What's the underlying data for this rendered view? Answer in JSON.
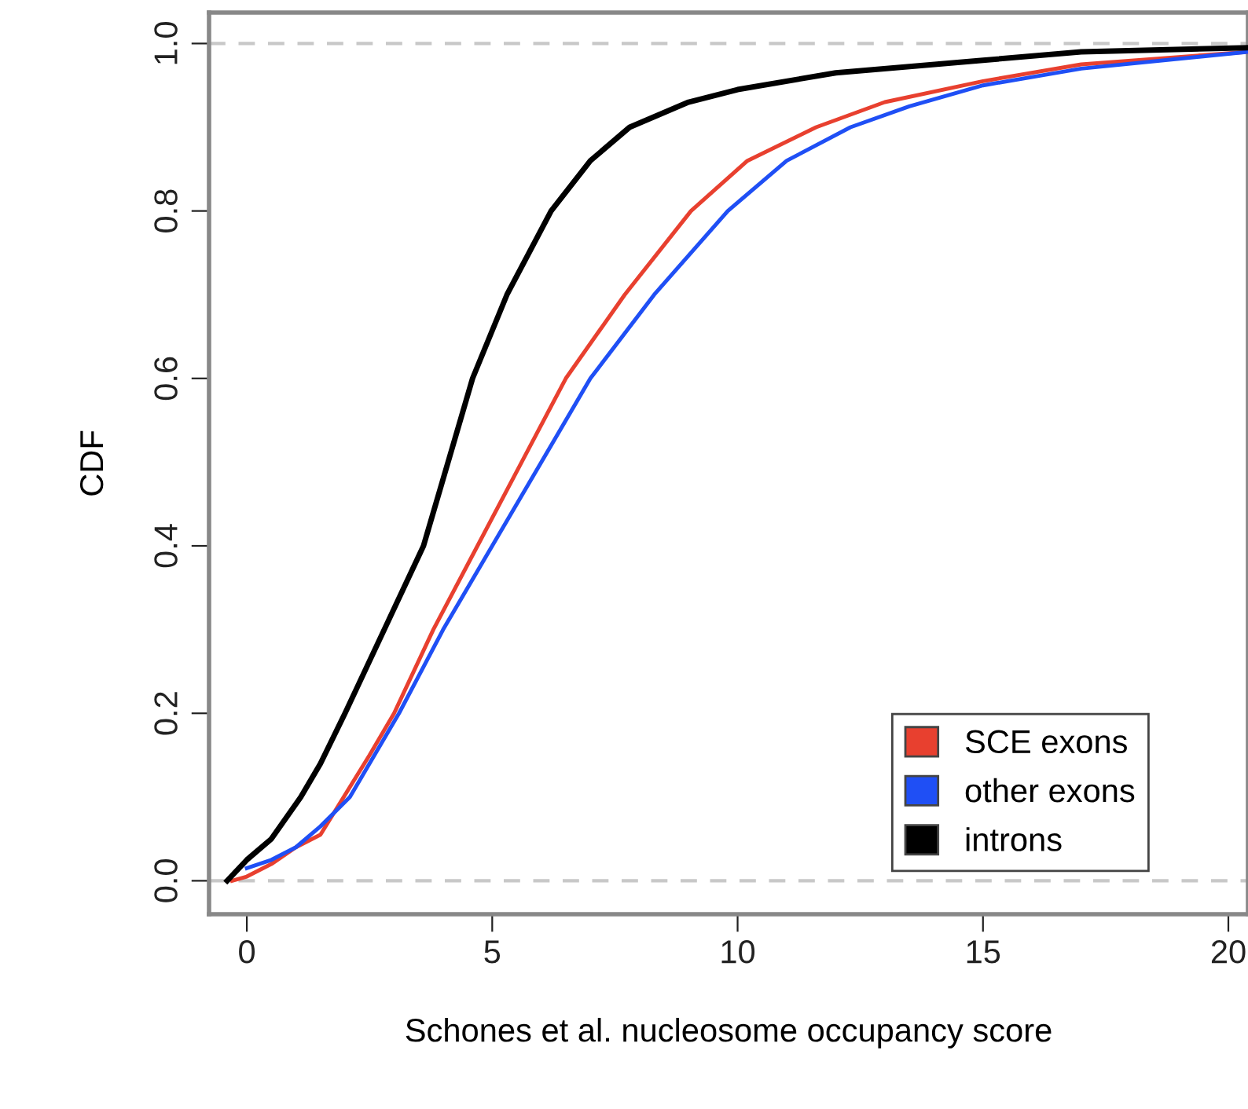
{
  "chart_data": {
    "type": "line",
    "xlabel": "Schones et al. nucleosome occupancy score",
    "ylabel": "CDF",
    "xlim": [
      -0.77,
      20.4
    ],
    "ylim": [
      -0.04,
      1.037
    ],
    "xticks": [
      0,
      5,
      10,
      15,
      20
    ],
    "yticks": [
      {
        "value": 0,
        "label": "0.0"
      },
      {
        "value": 0.2,
        "label": "0.2"
      },
      {
        "value": 0.4,
        "label": "0.4"
      },
      {
        "value": 0.6,
        "label": "0.6"
      },
      {
        "value": 0.8,
        "label": "0.8"
      },
      {
        "value": 1,
        "label": "1.0"
      }
    ],
    "grid": false,
    "legend": "bottom right",
    "line_style": "solid",
    "marker": "none",
    "ref_lines": [
      {
        "axis": "y",
        "value": 0,
        "color": "#c8c8c8",
        "line_style": "dashed"
      },
      {
        "axis": "y",
        "value": 1,
        "color": "#c8c8c8",
        "line_style": "dashed"
      }
    ],
    "series": [
      {
        "name": "SCE exons",
        "color": "#e8402f",
        "x": [
          -0.3,
          0,
          0.5,
          1,
          1.5,
          2.5,
          3.0,
          3.8,
          4.7,
          5.6,
          6.5,
          7.7,
          9.05,
          10.2,
          11.6,
          13,
          15,
          17,
          20.4
        ],
        "values": [
          0,
          0.005,
          0.02,
          0.04,
          0.055,
          0.15,
          0.2,
          0.3,
          0.4,
          0.5,
          0.6,
          0.7,
          0.8,
          0.86,
          0.9,
          0.93,
          0.955,
          0.975,
          0.99
        ]
      },
      {
        "name": "other exons",
        "color": "#1f4ff5",
        "x": [
          0,
          0.5,
          1,
          1.5,
          2.1,
          3.1,
          4.0,
          5.0,
          6.0,
          7.0,
          8.3,
          9.8,
          11,
          12.3,
          13.5,
          15,
          17,
          20.4
        ],
        "values": [
          0.015,
          0.025,
          0.04,
          0.065,
          0.1,
          0.2,
          0.3,
          0.4,
          0.5,
          0.6,
          0.7,
          0.8,
          0.86,
          0.9,
          0.925,
          0.95,
          0.97,
          0.99
        ]
      },
      {
        "name": "introns",
        "color": "#000000",
        "x": [
          -0.4,
          0,
          0.5,
          1.1,
          1.5,
          2.0,
          2.8,
          3.6,
          4.1,
          4.6,
          5.3,
          6.2,
          7.0,
          7.8,
          9.0,
          10,
          12,
          15,
          17,
          20.4
        ],
        "values": [
          0,
          0.025,
          0.05,
          0.1,
          0.14,
          0.2,
          0.3,
          0.4,
          0.5,
          0.6,
          0.7,
          0.8,
          0.86,
          0.9,
          0.93,
          0.945,
          0.965,
          0.98,
          0.99,
          0.995
        ]
      }
    ]
  }
}
